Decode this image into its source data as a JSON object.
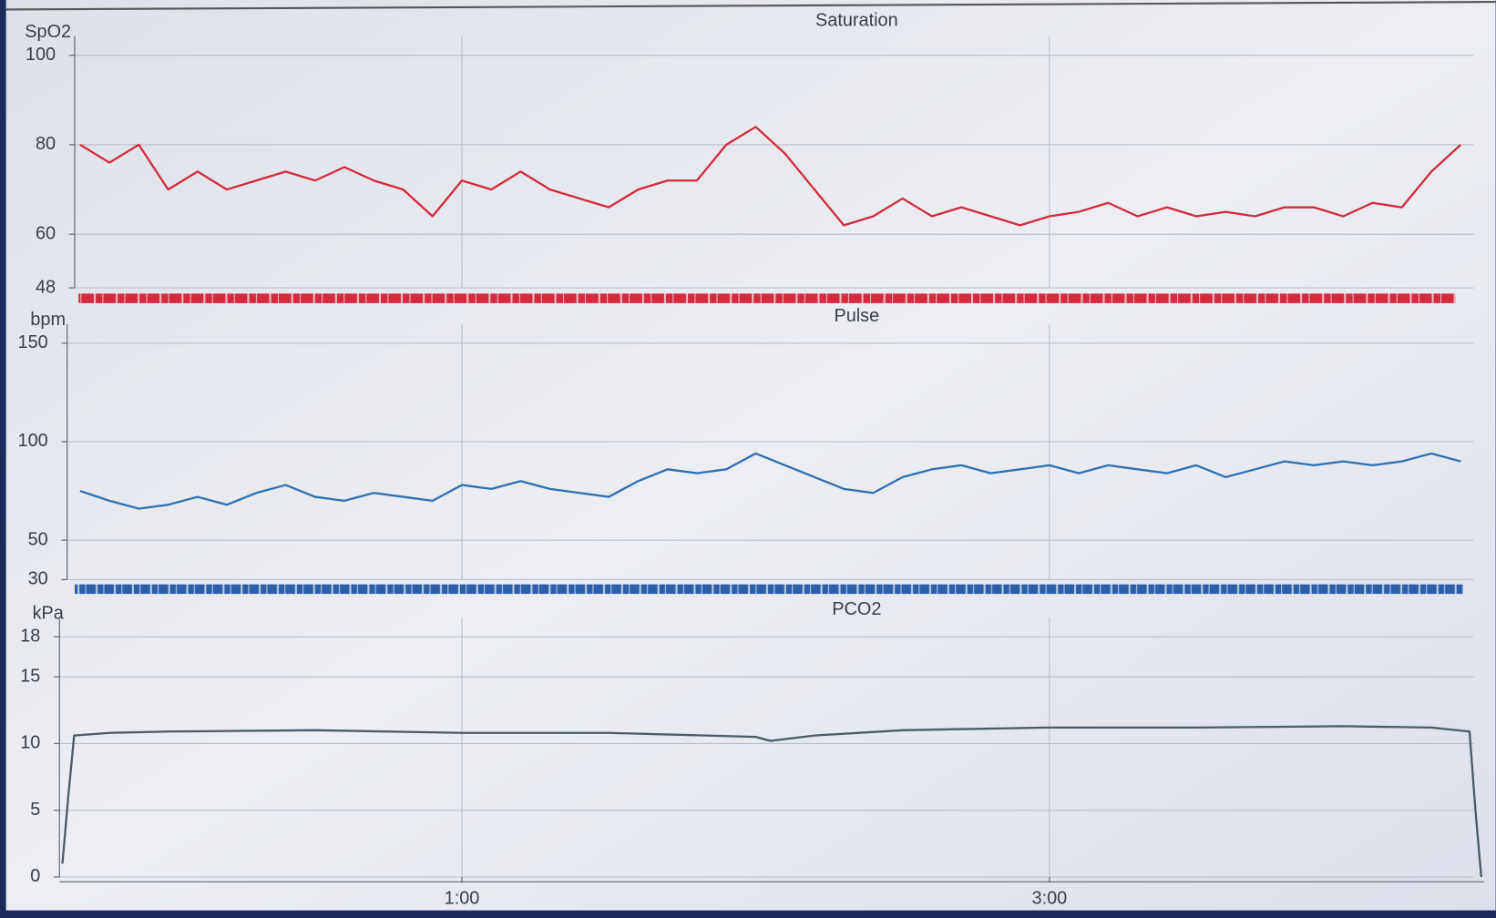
{
  "chart_data": [
    {
      "type": "line",
      "title": "Saturation",
      "ylabel": "SpO2",
      "color": "#d42a3c",
      "x": [
        -0.3,
        -0.2,
        -0.1,
        0,
        0.1,
        0.2,
        0.3,
        0.4,
        0.5,
        0.6,
        0.7,
        0.8,
        0.9,
        1,
        1.1,
        1.2,
        1.3,
        1.4,
        1.5,
        1.6,
        1.7,
        1.8,
        1.9,
        2,
        2.1,
        2.2,
        2.3,
        2.4,
        2.5,
        2.6,
        2.7,
        2.8,
        2.9,
        3,
        3.1,
        3.2,
        3.3,
        3.4,
        3.5,
        3.6,
        3.7,
        3.8,
        3.9,
        4,
        4.1,
        4.2,
        4.3,
        4.4
      ],
      "values": [
        80,
        76,
        80,
        70,
        74,
        70,
        72,
        74,
        72,
        75,
        72,
        70,
        64,
        72,
        70,
        74,
        70,
        68,
        66,
        70,
        72,
        72,
        80,
        84,
        78,
        70,
        62,
        64,
        68,
        64,
        66,
        64,
        62,
        64,
        65,
        67,
        64,
        66,
        64,
        65,
        64,
        66,
        66,
        64,
        67,
        66,
        74,
        80
      ],
      "xlim": [
        -0.37,
        4.48
      ],
      "ylim": [
        48,
        100
      ],
      "yticks": [
        48,
        60,
        80,
        100
      ],
      "grid": true
    },
    {
      "type": "line",
      "title": "Pulse",
      "ylabel": "bpm",
      "color": "#2f6fb3",
      "x": [
        -0.3,
        -0.2,
        -0.1,
        0,
        0.1,
        0.2,
        0.3,
        0.4,
        0.5,
        0.6,
        0.7,
        0.8,
        0.9,
        1,
        1.1,
        1.2,
        1.3,
        1.4,
        1.5,
        1.6,
        1.7,
        1.8,
        1.9,
        2,
        2.1,
        2.2,
        2.3,
        2.4,
        2.5,
        2.6,
        2.7,
        2.8,
        2.9,
        3,
        3.1,
        3.2,
        3.3,
        3.4,
        3.5,
        3.6,
        3.7,
        3.8,
        3.9,
        4,
        4.1,
        4.2,
        4.3,
        4.4
      ],
      "values": [
        75,
        70,
        66,
        68,
        72,
        68,
        74,
        78,
        72,
        70,
        74,
        72,
        70,
        78,
        76,
        80,
        76,
        74,
        72,
        80,
        86,
        84,
        86,
        94,
        88,
        82,
        76,
        74,
        82,
        86,
        88,
        84,
        86,
        88,
        84,
        88,
        86,
        84,
        88,
        82,
        86,
        90,
        88,
        90,
        88,
        90,
        94,
        90
      ],
      "xlim": [
        -0.37,
        4.48
      ],
      "ylim": [
        30,
        150
      ],
      "yticks": [
        30,
        50,
        100,
        150
      ],
      "grid": true
    },
    {
      "type": "line",
      "title": "PCO2",
      "ylabel": "kPa",
      "color": "#4a5a66",
      "x": [
        -0.36,
        -0.34,
        -0.32,
        -0.2,
        0,
        0.5,
        1,
        1.5,
        2,
        2.05,
        2.2,
        2.5,
        3,
        3.5,
        4,
        4.3,
        4.43,
        4.45,
        4.47
      ],
      "values": [
        1,
        6,
        10.6,
        10.8,
        10.9,
        11.0,
        10.8,
        10.8,
        10.5,
        10.2,
        10.6,
        11.0,
        11.2,
        11.2,
        11.3,
        11.2,
        10.9,
        5,
        0
      ],
      "xlim": [
        -0.37,
        4.48
      ],
      "ylim": [
        0,
        18
      ],
      "yticks": [
        0,
        5,
        10,
        15,
        18
      ],
      "xticks": [
        {
          "value": 1,
          "label": "1:00"
        },
        {
          "value": 3,
          "label": "3:00"
        }
      ],
      "grid": true
    }
  ]
}
